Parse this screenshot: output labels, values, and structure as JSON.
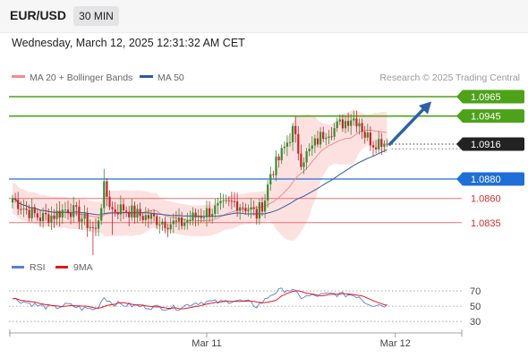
{
  "header": {
    "symbol": "EUR/USD",
    "timeframe": "30 MIN",
    "datetime": "Wednesday, March 12, 2025 12:31:32 AM CET"
  },
  "legend": {
    "items": [
      {
        "label": "MA 20 + Bollinger Bands",
        "color": "#f28c8c"
      },
      {
        "label": "MA 50",
        "color": "#2d5d9c"
      }
    ],
    "copyright": "Research © 2025 Trading Central"
  },
  "rsi_legend": {
    "items": [
      {
        "label": "RSI",
        "color": "#5b7fd4"
      },
      {
        "label": "9MA",
        "color": "#e01b1b"
      }
    ]
  },
  "colors": {
    "up": "#3a8a2e",
    "down": "#c0282c",
    "resistance": "#4ea21a",
    "support_blue": "#1f6fd6",
    "support_red": "#e57373",
    "band_fill": "#fde1e1",
    "arrow": "#2d62a8",
    "current_price_bg": "#222222"
  },
  "chart_data": [
    {
      "type": "candlestick",
      "title": "",
      "y_range": [
        1.0808,
        1.0977
      ],
      "x_axis_labels": [
        {
          "label": "Mar 11",
          "bar": 70
        },
        {
          "label": "Mar 12",
          "bar": 138
        }
      ],
      "levels": [
        {
          "value": 1.0965,
          "label": "1.0965",
          "kind": "resistance"
        },
        {
          "value": 1.0945,
          "label": "1.0945",
          "kind": "resistance"
        },
        {
          "value": 1.0916,
          "label": "1.0916",
          "kind": "current"
        },
        {
          "value": 1.088,
          "label": "1.0880",
          "kind": "support"
        },
        {
          "value": 1.086,
          "label": "1.0860",
          "kind": "support_secondary"
        },
        {
          "value": 1.0835,
          "label": "1.0835",
          "kind": "support_secondary"
        }
      ],
      "waypoints": [
        [
          0,
          1.086
        ],
        [
          5,
          1.0848
        ],
        [
          10,
          1.084
        ],
        [
          15,
          1.0843
        ],
        [
          20,
          1.085
        ],
        [
          25,
          1.084
        ],
        [
          30,
          1.0826
        ],
        [
          33,
          1.087
        ],
        [
          36,
          1.0848
        ],
        [
          40,
          1.085
        ],
        [
          45,
          1.0843
        ],
        [
          50,
          1.084
        ],
        [
          55,
          1.0836
        ],
        [
          60,
          1.0833
        ],
        [
          65,
          1.084
        ],
        [
          70,
          1.0846
        ],
        [
          75,
          1.085
        ],
        [
          80,
          1.0856
        ],
        [
          85,
          1.085
        ],
        [
          88,
          1.0843
        ],
        [
          91,
          1.086
        ],
        [
          93,
          1.0886
        ],
        [
          96,
          1.09
        ],
        [
          99,
          1.0918
        ],
        [
          101,
          1.093
        ],
        [
          104,
          1.09
        ],
        [
          107,
          1.0908
        ],
        [
          110,
          1.092
        ],
        [
          113,
          1.093
        ],
        [
          116,
          1.0932
        ],
        [
          119,
          1.0938
        ],
        [
          122,
          1.0944
        ],
        [
          125,
          1.094
        ],
        [
          127,
          1.0926
        ],
        [
          130,
          1.0918
        ],
        [
          133,
          1.092
        ],
        [
          135,
          1.0916
        ]
      ],
      "projection": {
        "from": [
          136,
          1.0916
        ],
        "to": [
          151,
          1.096
        ]
      },
      "rsi": {
        "levels": [
          70,
          50,
          30
        ],
        "range": [
          15,
          90
        ],
        "waypoints": [
          [
            0,
            60
          ],
          [
            5,
            55
          ],
          [
            10,
            50
          ],
          [
            15,
            48
          ],
          [
            20,
            52
          ],
          [
            25,
            47
          ],
          [
            30,
            46
          ],
          [
            33,
            62
          ],
          [
            36,
            54
          ],
          [
            40,
            52
          ],
          [
            45,
            50
          ],
          [
            50,
            49
          ],
          [
            55,
            48
          ],
          [
            60,
            48
          ],
          [
            65,
            54
          ],
          [
            70,
            56
          ],
          [
            75,
            55
          ],
          [
            80,
            58
          ],
          [
            85,
            55
          ],
          [
            88,
            50
          ],
          [
            91,
            58
          ],
          [
            93,
            65
          ],
          [
            96,
            70
          ],
          [
            99,
            72
          ],
          [
            101,
            70
          ],
          [
            104,
            62
          ],
          [
            107,
            63
          ],
          [
            110,
            64
          ],
          [
            113,
            65
          ],
          [
            116,
            66
          ],
          [
            119,
            65
          ],
          [
            122,
            65
          ],
          [
            125,
            63
          ],
          [
            127,
            56
          ],
          [
            130,
            52
          ],
          [
            133,
            52
          ],
          [
            135,
            51
          ]
        ]
      }
    }
  ]
}
